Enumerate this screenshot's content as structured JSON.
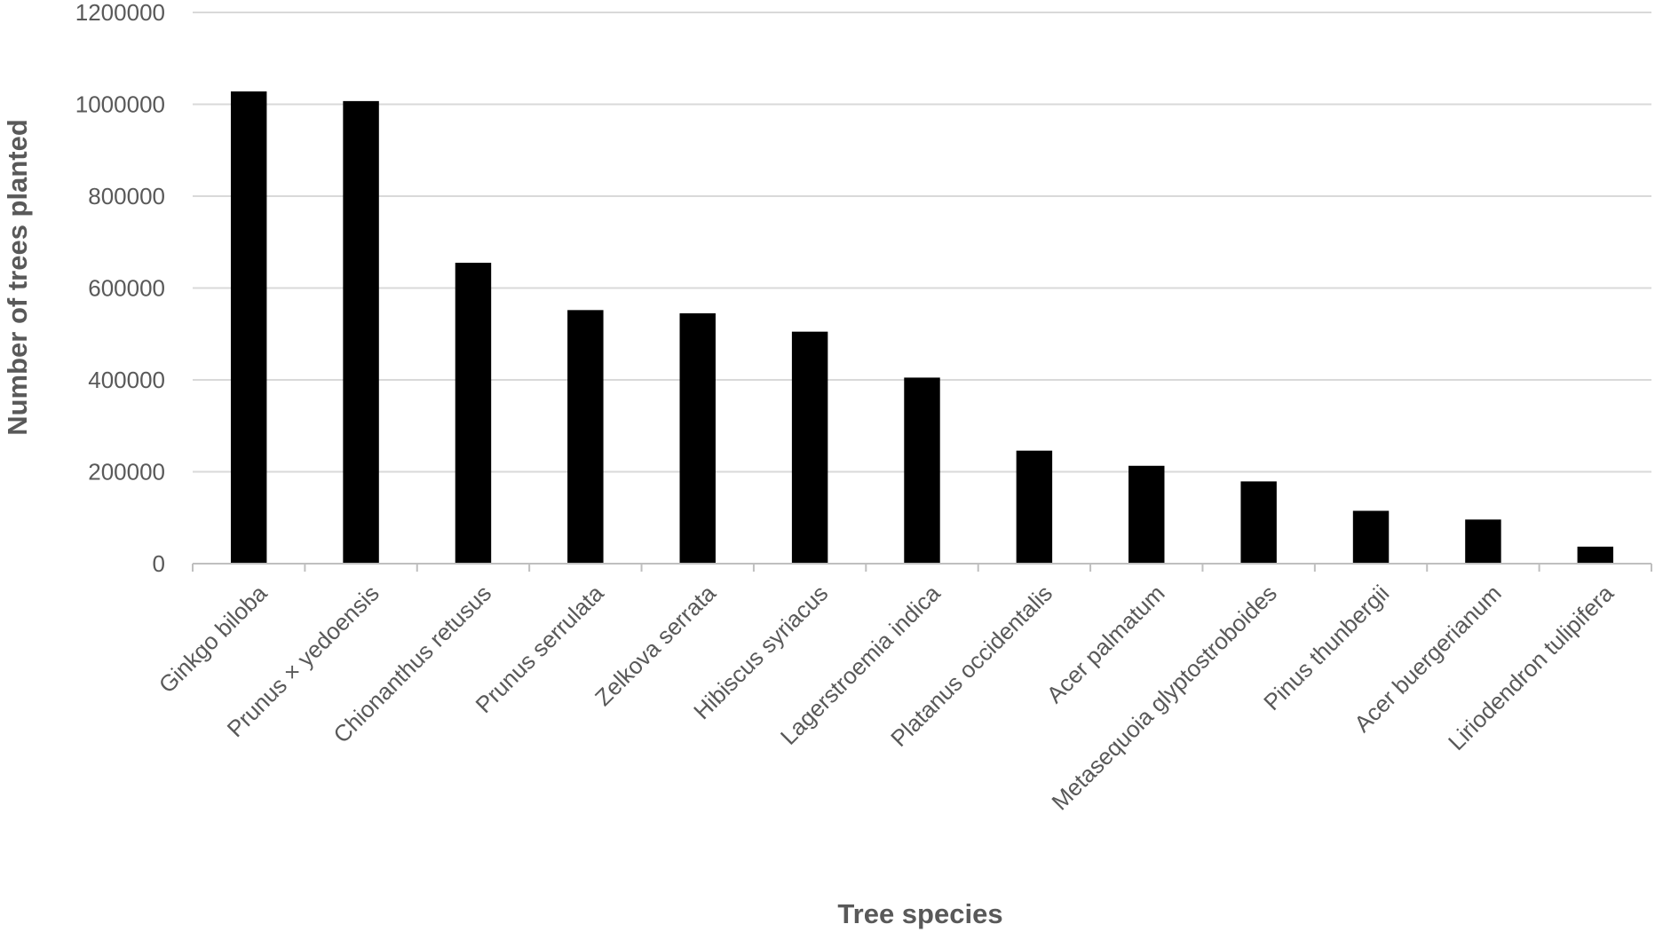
{
  "chart_data": {
    "type": "bar",
    "xlabel": "Tree species",
    "ylabel": "Number of trees planted",
    "ylim": [
      0,
      1200000
    ],
    "yticks": [
      0,
      200000,
      400000,
      600000,
      800000,
      1000000,
      1200000
    ],
    "grid": true,
    "legend": "none",
    "bar_color": "#000000",
    "categories": [
      "Ginkgo biloba",
      "Prunus × yedoensis",
      "Chionanthus retusus",
      "Prunus serrulata",
      "Zelkova serrata",
      "Hibiscus syriacus",
      "Lagerstroemia indica",
      "Platanus occidentalis",
      "Acer palmatum",
      "Metasequoia glyptostroboides",
      "Pinus thunbergii",
      "Acer buergerianum",
      "Liriodendron tulipifera"
    ],
    "values": [
      1028000,
      1007000,
      655000,
      552000,
      545000,
      505000,
      405000,
      246000,
      213000,
      179000,
      115000,
      96000,
      37000
    ]
  }
}
